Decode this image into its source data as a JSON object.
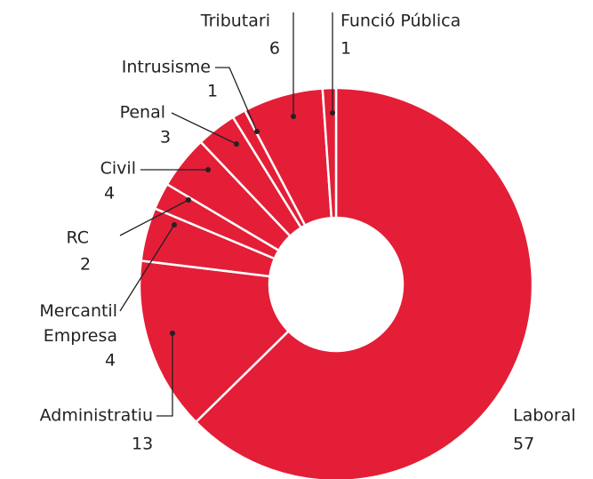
{
  "chart_data": {
    "type": "donut",
    "categories": [
      "Laboral",
      "Administratiu",
      "Mercantil Empresa",
      "RC",
      "Civil",
      "Penal",
      "Intrusisme",
      "Tributari",
      "Funció Pública"
    ],
    "values": [
      57,
      13,
      4,
      2,
      4,
      3,
      1,
      6,
      1
    ],
    "color": "#e31e36"
  }
}
